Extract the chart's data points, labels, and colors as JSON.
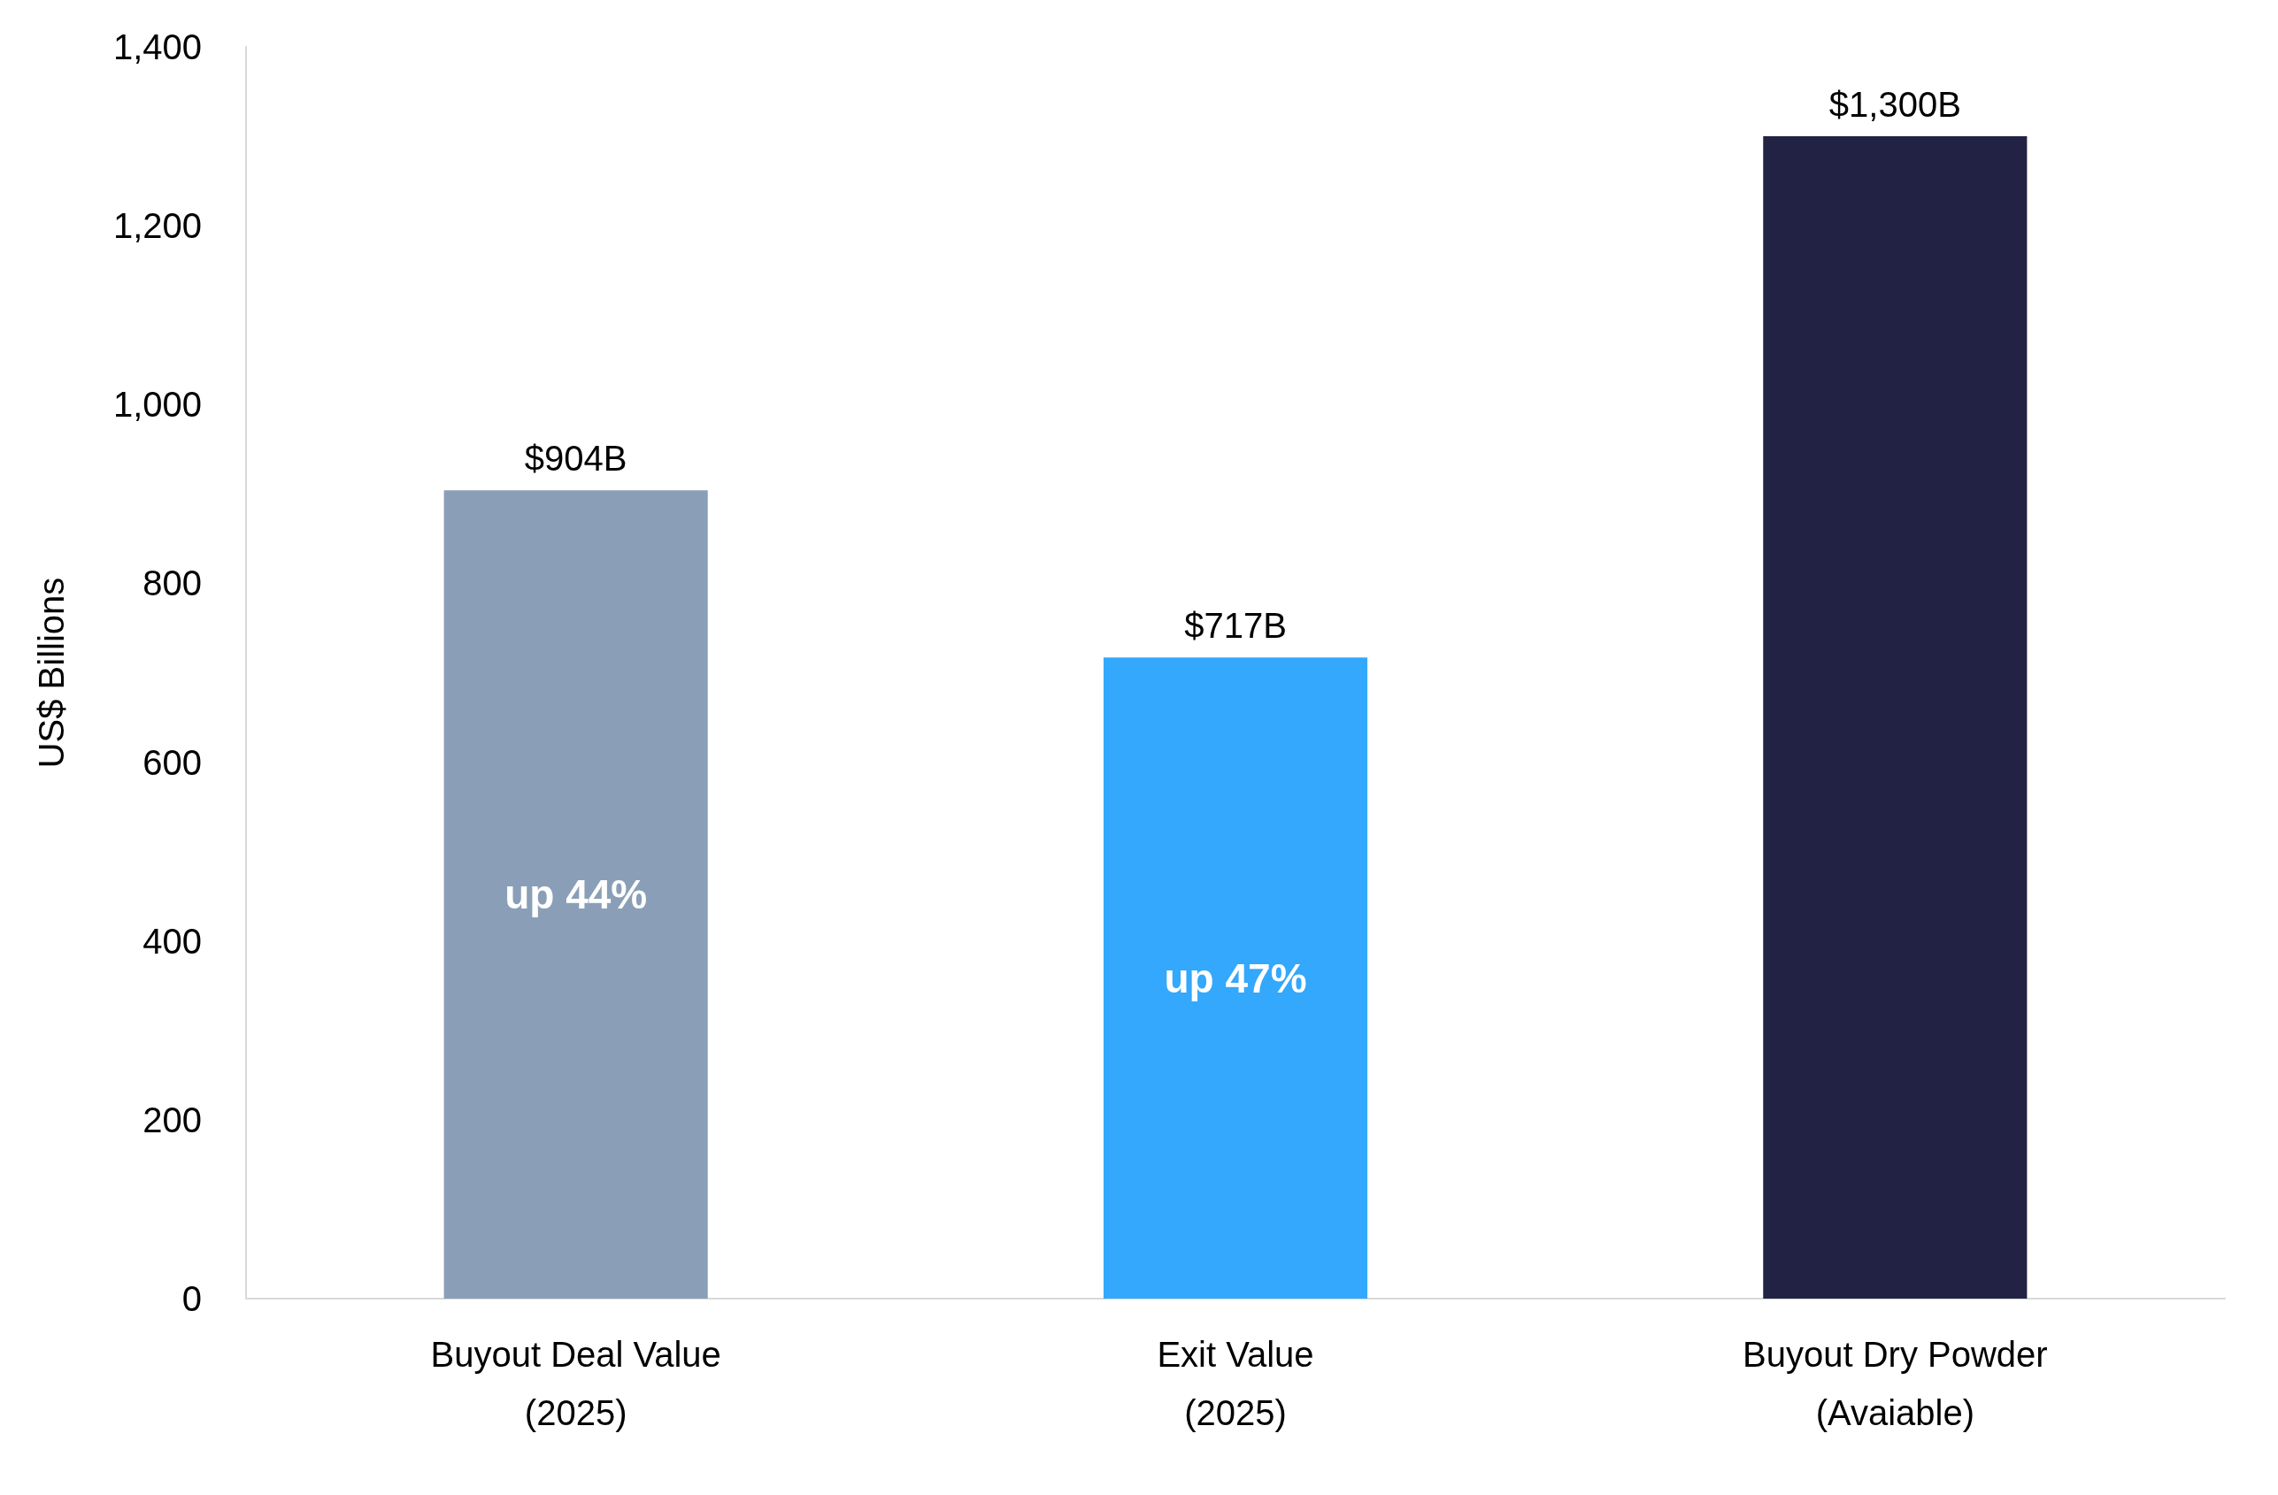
{
  "chart_data": {
    "type": "bar",
    "categories": [
      "Buyout Deal Value\n(2025)",
      "Exit Value\n(2025)",
      "Buyout Dry Powder\n(Avaiable)"
    ],
    "values": [
      904,
      717,
      1300
    ],
    "colors": [
      "#8a9fb7",
      "#33a8fc",
      "#222244"
    ],
    "value_labels": [
      "$904B",
      "$717B",
      "$1,300B"
    ],
    "ylabel": "US$ Billions",
    "ylim": [
      0,
      1400
    ],
    "yticks": [
      0,
      200,
      400,
      600,
      800,
      {
        "value": 1000,
        "label": "1,000"
      },
      {
        "value": 1200,
        "label": "1,200"
      },
      {
        "value": 1400,
        "label": "1,400"
      }
    ],
    "grid": false,
    "annotations": [
      "up 44%",
      "up 47%"
    ]
  }
}
